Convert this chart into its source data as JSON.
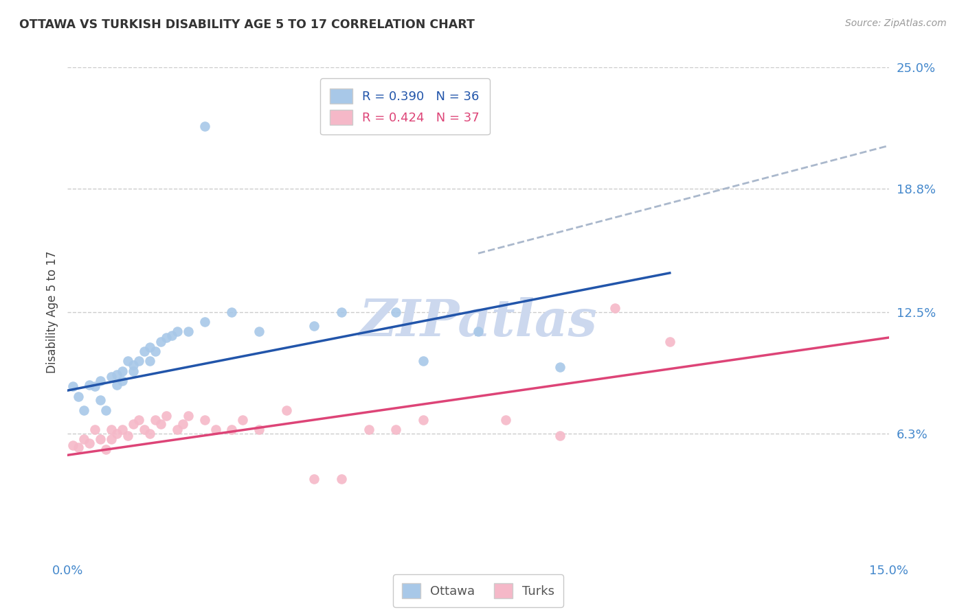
{
  "title": "OTTAWA VS TURKISH DISABILITY AGE 5 TO 17 CORRELATION CHART",
  "source": "Source: ZipAtlas.com",
  "ylabel": "Disability Age 5 to 17",
  "xlim": [
    0.0,
    0.15
  ],
  "ylim": [
    0.0,
    0.25
  ],
  "xtick_labels": [
    "0.0%",
    "15.0%"
  ],
  "xtick_positions": [
    0.0,
    0.15
  ],
  "ytick_labels": [
    "6.3%",
    "12.5%",
    "18.8%",
    "25.0%"
  ],
  "ytick_positions": [
    0.063,
    0.125,
    0.188,
    0.25
  ],
  "grid_color": "#cccccc",
  "background_color": "#ffffff",
  "ottawa_color": "#a8c8e8",
  "turks_color": "#f5b8c8",
  "ottawa_line_color": "#2255aa",
  "turks_line_color": "#dd4477",
  "dashed_line_color": "#aab8cc",
  "watermark_color": "#ccd8ee",
  "legend_R_ottawa": "R = 0.390",
  "legend_N_ottawa": "N = 36",
  "legend_R_turks": "R = 0.424",
  "legend_N_turks": "N = 37",
  "ottawa_scatter_x": [
    0.001,
    0.002,
    0.003,
    0.004,
    0.005,
    0.006,
    0.006,
    0.007,
    0.008,
    0.009,
    0.009,
    0.01,
    0.01,
    0.011,
    0.012,
    0.012,
    0.013,
    0.014,
    0.015,
    0.015,
    0.016,
    0.017,
    0.018,
    0.019,
    0.02,
    0.022,
    0.025,
    0.03,
    0.035,
    0.045,
    0.05,
    0.06,
    0.065,
    0.075,
    0.09,
    0.025
  ],
  "ottawa_scatter_y": [
    0.087,
    0.082,
    0.075,
    0.088,
    0.087,
    0.09,
    0.08,
    0.075,
    0.092,
    0.093,
    0.088,
    0.095,
    0.09,
    0.1,
    0.098,
    0.095,
    0.1,
    0.105,
    0.1,
    0.107,
    0.105,
    0.11,
    0.112,
    0.113,
    0.115,
    0.115,
    0.12,
    0.125,
    0.115,
    0.118,
    0.125,
    0.125,
    0.1,
    0.115,
    0.097,
    0.22
  ],
  "turks_scatter_x": [
    0.001,
    0.002,
    0.003,
    0.004,
    0.005,
    0.006,
    0.007,
    0.008,
    0.008,
    0.009,
    0.01,
    0.011,
    0.012,
    0.013,
    0.014,
    0.015,
    0.016,
    0.017,
    0.018,
    0.02,
    0.021,
    0.022,
    0.025,
    0.027,
    0.03,
    0.032,
    0.035,
    0.04,
    0.045,
    0.05,
    0.055,
    0.06,
    0.065,
    0.08,
    0.09,
    0.1,
    0.11
  ],
  "turks_scatter_y": [
    0.057,
    0.056,
    0.06,
    0.058,
    0.065,
    0.06,
    0.055,
    0.06,
    0.065,
    0.063,
    0.065,
    0.062,
    0.068,
    0.07,
    0.065,
    0.063,
    0.07,
    0.068,
    0.072,
    0.065,
    0.068,
    0.072,
    0.07,
    0.065,
    0.065,
    0.07,
    0.065,
    0.075,
    0.04,
    0.04,
    0.065,
    0.065,
    0.07,
    0.07,
    0.062,
    0.127,
    0.11
  ],
  "ottawa_line_x0": 0.0,
  "ottawa_line_x1": 0.11,
  "ottawa_line_y0": 0.085,
  "ottawa_line_y1": 0.145,
  "turks_line_x0": 0.0,
  "turks_line_x1": 0.15,
  "turks_line_y0": 0.052,
  "turks_line_y1": 0.112,
  "dashed_line_x0": 0.075,
  "dashed_line_x1": 0.15,
  "dashed_line_y0": 0.155,
  "dashed_line_y1": 0.21
}
